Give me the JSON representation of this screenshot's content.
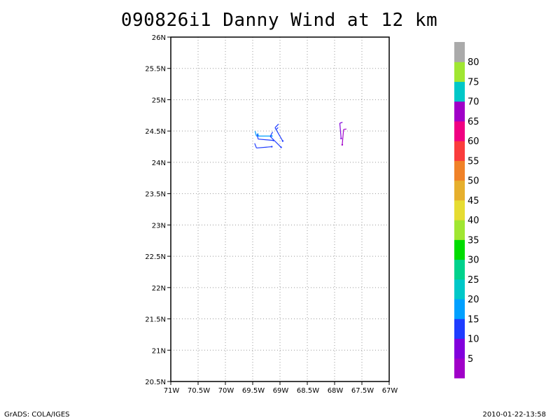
{
  "title": "090826i1 Danny Wind at 12 km",
  "footer": {
    "left": "GrADS: COLA/IGES",
    "right": "2010-01-22-13:58"
  },
  "chart_data": {
    "type": "scatter",
    "subtype": "wind-barbs",
    "title": "090826i1 Danny Wind at 12 km",
    "xlim": [
      -71,
      -67
    ],
    "ylim": [
      20.5,
      26
    ],
    "x_ticks": [
      {
        "v": -71,
        "label": "71W"
      },
      {
        "v": -70.5,
        "label": "70.5W"
      },
      {
        "v": -70,
        "label": "70W"
      },
      {
        "v": -69.5,
        "label": "69.5W"
      },
      {
        "v": -69,
        "label": "69W"
      },
      {
        "v": -68.5,
        "label": "68.5W"
      },
      {
        "v": -68,
        "label": "68W"
      },
      {
        "v": -67.5,
        "label": "67.5W"
      },
      {
        "v": -67,
        "label": "67W"
      }
    ],
    "y_ticks": [
      {
        "v": 20.5,
        "label": "20.5N"
      },
      {
        "v": 21,
        "label": "21N"
      },
      {
        "v": 21.5,
        "label": "21.5N"
      },
      {
        "v": 22,
        "label": "22N"
      },
      {
        "v": 22.5,
        "label": "22.5N"
      },
      {
        "v": 23,
        "label": "23N"
      },
      {
        "v": 23.5,
        "label": "23.5N"
      },
      {
        "v": 24,
        "label": "24N"
      },
      {
        "v": 24.5,
        "label": "24.5N"
      },
      {
        "v": 25,
        "label": "25N"
      },
      {
        "v": 25.5,
        "label": "25.5N"
      },
      {
        "v": 26,
        "label": "26N"
      }
    ],
    "grid": true,
    "legend": "right",
    "colorbar": {
      "labels": [
        "5",
        "10",
        "15",
        "20",
        "25",
        "30",
        "35",
        "40",
        "45",
        "50",
        "55",
        "60",
        "65",
        "70",
        "75",
        "80"
      ],
      "colors": [
        "#a000c8",
        "#8200dc",
        "#1e3cff",
        "#00a0ff",
        "#00c8c8",
        "#00d28c",
        "#00dc00",
        "#a0e632",
        "#e6dc32",
        "#e6af2d",
        "#f08228",
        "#fa3c3c",
        "#f00082",
        "#a000c8",
        "#00c8c8",
        "#a0e632",
        "#aaaaaa"
      ]
    },
    "barbs": [
      {
        "lon": -69.15,
        "lat": 24.42,
        "dir": 270,
        "speed": 17,
        "color": "#00a0ff"
      },
      {
        "lon": -68.95,
        "lat": 24.34,
        "dir": 330,
        "speed": 15,
        "color": "#1e3cff"
      },
      {
        "lon": -69.12,
        "lat": 24.35,
        "dir": 275,
        "speed": 13,
        "color": "#1e3cff"
      },
      {
        "lon": -68.98,
        "lat": 24.24,
        "dir": 315,
        "speed": 14,
        "color": "#1e3cff"
      },
      {
        "lon": -69.15,
        "lat": 24.25,
        "dir": 265,
        "speed": 12,
        "color": "#1e3cff"
      },
      {
        "lon": -67.88,
        "lat": 24.38,
        "dir": 355,
        "speed": 7,
        "color": "#8200dc"
      },
      {
        "lon": -67.86,
        "lat": 24.28,
        "dir": 5,
        "speed": 8,
        "color": "#a000c8"
      }
    ]
  }
}
